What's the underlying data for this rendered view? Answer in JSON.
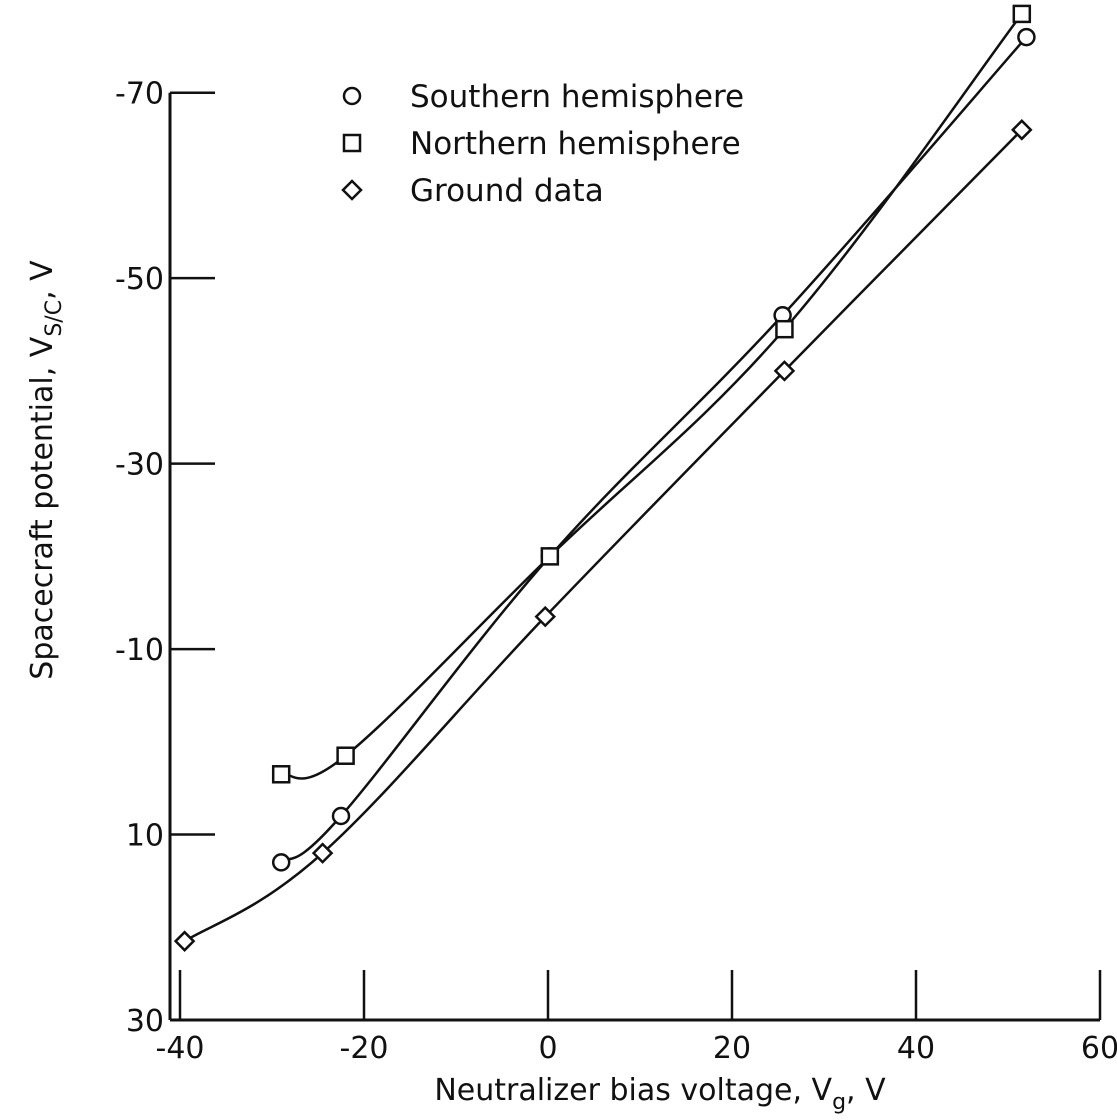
{
  "chart_data": {
    "type": "scatter",
    "title": "",
    "xlabel": "Neutralizer bias voltage, V",
    "xlabel_sub": "g",
    "xlabel_suffix": ", V",
    "ylabel": "Spacecraft potential, V",
    "ylabel_sub": "S/C",
    "ylabel_suffix": ", V",
    "xlim": [
      -40,
      60
    ],
    "ylim": [
      30,
      -80
    ],
    "y_axis_inverted": true,
    "x_ticks": [
      -40,
      -20,
      0,
      20,
      40,
      60
    ],
    "x_tick_labels": [
      "-40",
      "-20",
      "0",
      "20",
      "40",
      "60"
    ],
    "y_ticks": [
      30,
      10,
      -10,
      -30,
      -50,
      -70
    ],
    "y_tick_labels": [
      "30",
      "10",
      "-10",
      "-30",
      "-50",
      "-70"
    ],
    "grid": false,
    "legend_position": "top-left",
    "series": [
      {
        "name": "Southern hemisphere",
        "marker": "circle",
        "x": [
          -29,
          -22.5,
          0.2,
          25.5,
          52
        ],
        "y": [
          13,
          8,
          -20,
          -46,
          -76
        ]
      },
      {
        "name": "Northern hemisphere",
        "marker": "square",
        "x": [
          -29,
          -22,
          0.2,
          25.7,
          51.5
        ],
        "y": [
          3.5,
          1.5,
          -20,
          -44.5,
          -78.5
        ]
      },
      {
        "name": "Ground data",
        "marker": "diamond",
        "x": [
          -39.5,
          -24.5,
          -0.3,
          25.7,
          51.5
        ],
        "y": [
          21.5,
          12,
          -13.5,
          -40,
          -66
        ]
      }
    ]
  }
}
